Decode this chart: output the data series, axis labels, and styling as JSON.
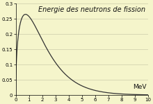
{
  "title": "Energie des neutrons de fission",
  "xlabel": "MeV",
  "xlim": [
    0,
    10
  ],
  "ylim": [
    0,
    0.3
  ],
  "yticks": [
    0,
    0.05,
    0.1,
    0.15,
    0.2,
    0.25,
    0.3
  ],
  "xticks": [
    0,
    1,
    2,
    3,
    4,
    5,
    6,
    7,
    8,
    9,
    10
  ],
  "bg_color": "#f5f5cb",
  "line_color": "#333333",
  "grid_color": "#ccccaa",
  "title_fontsize": 7.0,
  "tick_fontsize": 5.0,
  "xlabel_fontsize": 6.5,
  "watt_a": 0.988,
  "watt_b": 2.249
}
